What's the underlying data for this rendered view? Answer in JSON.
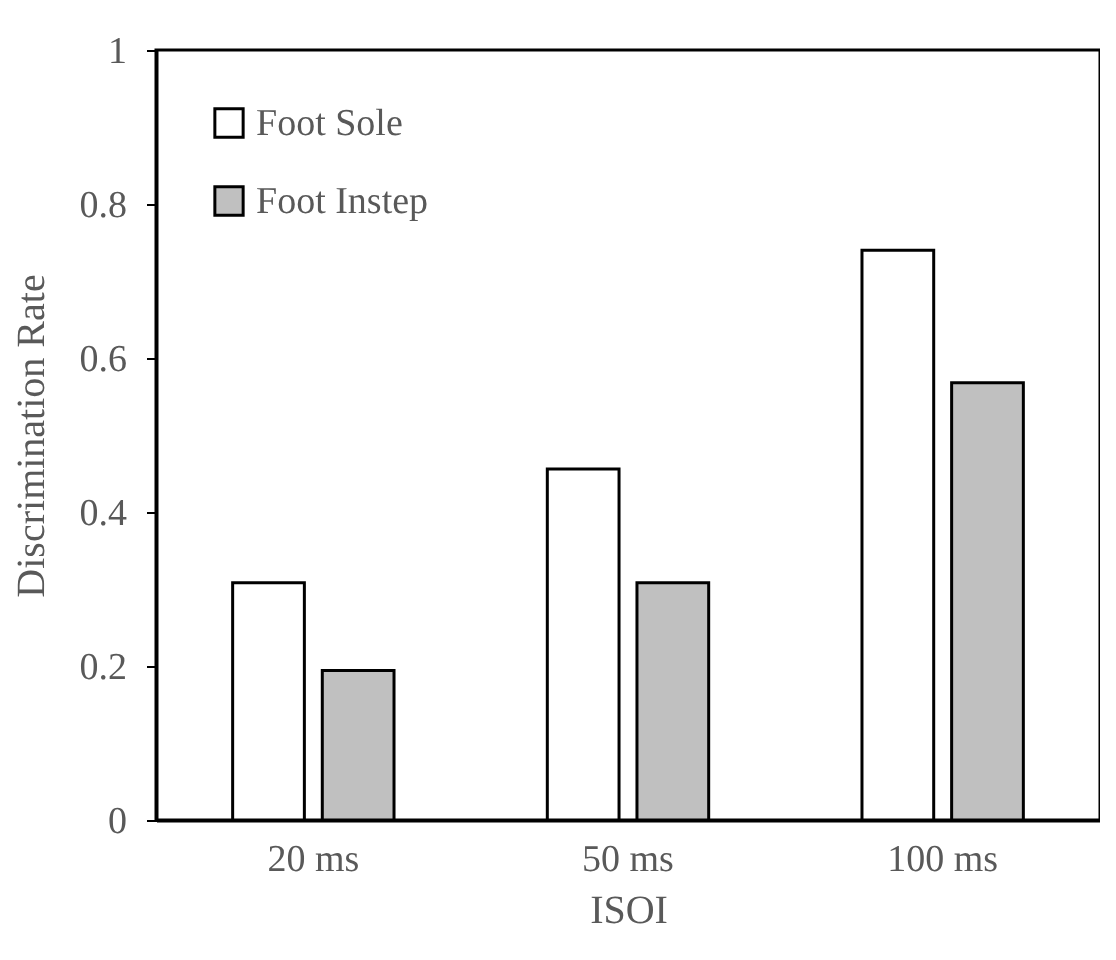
{
  "chart_data": {
    "type": "bar",
    "xlabel": "ISOI",
    "ylabel": "Discrimination Rate",
    "categories": [
      "20 ms",
      "50 ms",
      "100 ms"
    ],
    "series": [
      {
        "name": "Foot Sole",
        "color": "#ffffff",
        "values": [
          0.308,
          0.456,
          0.74
        ]
      },
      {
        "name": "Foot Instep",
        "color": "#c0c0c0",
        "values": [
          0.194,
          0.308,
          0.568
        ]
      }
    ],
    "ylim": [
      0,
      1
    ],
    "yticks": [
      0,
      0.2,
      0.4,
      0.6,
      0.8,
      1
    ],
    "grid": false,
    "legend": "top left"
  }
}
